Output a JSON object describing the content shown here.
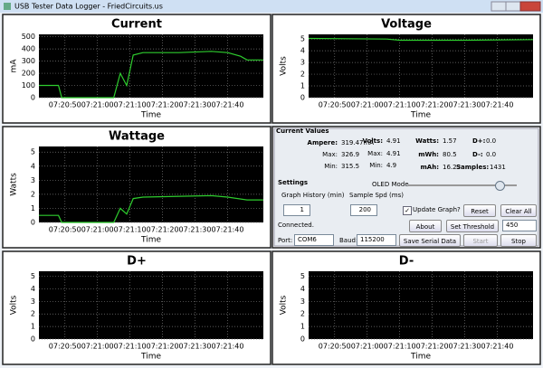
{
  "window_title": "USB Tester Data Logger - FriedCircuits.us",
  "chart_data": [
    {
      "type": "line",
      "title": "Current",
      "y_label": "mA",
      "x_label": "Time",
      "color": "#2ecc2e",
      "grid": true,
      "x": [
        "07:20:42",
        "07:20:48",
        "07:20:49",
        "07:21:05",
        "07:21:07",
        "07:21:09",
        "07:21:11",
        "07:21:14",
        "07:21:25",
        "07:21:35",
        "07:21:40",
        "07:21:44",
        "07:21:46",
        "07:21:51"
      ],
      "values": [
        100,
        100,
        0,
        0,
        200,
        100,
        350,
        370,
        370,
        380,
        370,
        340,
        310,
        310
      ],
      "xlim": [
        "07:20:42",
        "07:21:51"
      ],
      "xticks": [
        "07:20:50",
        "07:21:00",
        "07:21:10",
        "07:21:20",
        "07:21:30",
        "07:21:40"
      ],
      "ylim": [
        0,
        520
      ],
      "yticks": [
        0,
        100,
        200,
        300,
        400,
        500
      ]
    },
    {
      "type": "line",
      "title": "Voltage",
      "y_label": "Volts",
      "x_label": "Time",
      "color": "#2ecc2e",
      "grid": true,
      "x": [
        "07:20:42",
        "07:21:06",
        "07:21:10",
        "07:21:30",
        "07:21:51"
      ],
      "values": [
        5.05,
        5.0,
        4.9,
        4.9,
        4.95
      ],
      "xlim": [
        "07:20:42",
        "07:21:51"
      ],
      "xticks": [
        "07:20:50",
        "07:21:00",
        "07:21:10",
        "07:21:20",
        "07:21:30",
        "07:21:40"
      ],
      "ylim": [
        0,
        5.4
      ],
      "yticks": [
        0,
        1,
        2,
        3,
        4,
        5
      ]
    },
    {
      "type": "line",
      "title": "Wattage",
      "y_label": "Watts",
      "x_label": "Time",
      "color": "#2ecc2e",
      "grid": true,
      "x": [
        "07:20:42",
        "07:20:48",
        "07:20:49",
        "07:21:05",
        "07:21:07",
        "07:21:09",
        "07:21:11",
        "07:21:14",
        "07:21:35",
        "07:21:40",
        "07:21:46",
        "07:21:51"
      ],
      "values": [
        0.5,
        0.5,
        0,
        0,
        1,
        0.6,
        1.7,
        1.8,
        1.9,
        1.8,
        1.6,
        1.6
      ],
      "xlim": [
        "07:20:42",
        "07:21:51"
      ],
      "xticks": [
        "07:20:50",
        "07:21:00",
        "07:21:10",
        "07:21:20",
        "07:21:30",
        "07:21:40"
      ],
      "ylim": [
        0,
        5.4
      ],
      "yticks": [
        0,
        1,
        2,
        3,
        4,
        5
      ]
    },
    {
      "type": "line",
      "title": "D+",
      "y_label": "Volts",
      "x_label": "Time",
      "grid": true,
      "xlim": [
        "07:20:42",
        "07:21:51"
      ],
      "xticks": [
        "07:20:50",
        "07:21:00",
        "07:21:10",
        "07:21:20",
        "07:21:30",
        "07:21:40"
      ],
      "ylim": [
        0,
        5.4
      ],
      "yticks": [
        0,
        1,
        2,
        3,
        4,
        5
      ]
    },
    {
      "type": "line",
      "title": "D-",
      "y_label": "Volts",
      "x_label": "Time",
      "grid": true,
      "xlim": [
        "07:20:42",
        "07:21:51"
      ],
      "xticks": [
        "07:20:50",
        "07:21:00",
        "07:21:10",
        "07:21:20",
        "07:21:30",
        "07:21:40"
      ],
      "ylim": [
        0,
        5.4
      ],
      "yticks": [
        0,
        1,
        2,
        3,
        4,
        5
      ]
    }
  ],
  "panel": {
    "current_values": "Current Values",
    "ampere_label": "Ampere:",
    "ampere": "319.47mA",
    "amp_max_label": "Max:",
    "amp_max": "326.9",
    "amp_min_label": "Min:",
    "amp_min": "315.5",
    "volts_label": "Volts:",
    "volts": "4.91",
    "volt_max_label": "Max:",
    "volt_max": "4.91",
    "volt_min_label": "Min:",
    "volt_min": "4.9",
    "watts_label": "Watts:",
    "watts": "1.57",
    "mwh_label": "mWh:",
    "mwh": "80.5",
    "mah_label": "mAh:",
    "mah": "16.23",
    "dplus_label": "D+:",
    "dplus": "0.0",
    "dminus_label": "D-:",
    "dminus": "0.0",
    "samples_label": "Samples:",
    "samples": "1431",
    "settings": "Settings",
    "oled_mode": "OLED Mode",
    "graph_history_label": "Graph History (min)",
    "graph_history": "1",
    "sample_spd_label": "Sample Spd (ms)",
    "sample_spd": "200",
    "update_graph": "Update Graph?",
    "reset": "Reset",
    "clear_all": "Clear All",
    "status": "Connected.",
    "about": "About",
    "set_threshold": "Set Threshold",
    "threshold": "450",
    "port_label": "Port:",
    "port": "COM6",
    "baud_label": "Baud:",
    "baud": "115200",
    "save_serial": "Save Serial Data",
    "start": "Start",
    "stop": "Stop"
  }
}
